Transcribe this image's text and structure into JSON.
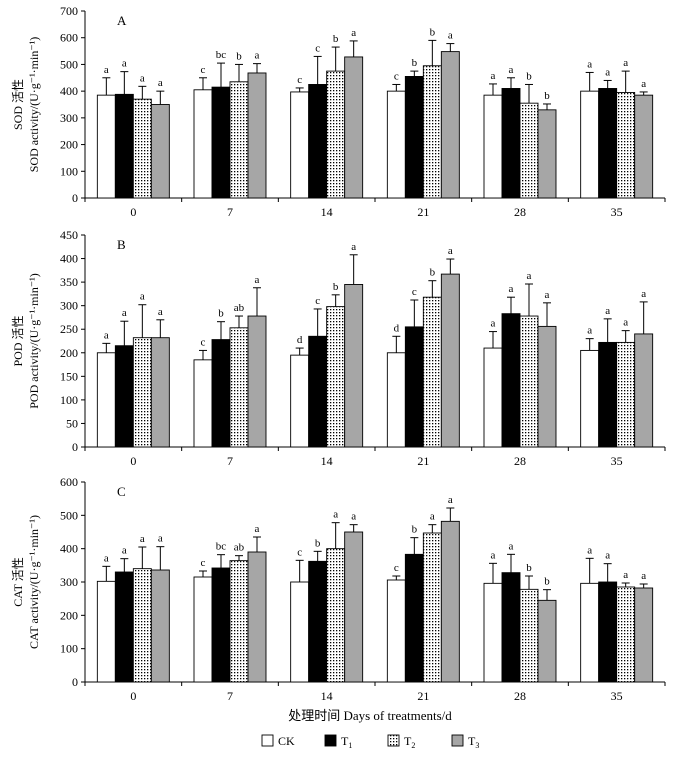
{
  "figure": {
    "xlabel": "处理时间 Days of treatments/d",
    "legend": [
      "CK",
      "T1",
      "T2",
      "T3"
    ],
    "legend_display": [
      {
        "base": "CK",
        "sub": ""
      },
      {
        "base": "T",
        "sub": "1"
      },
      {
        "base": "T",
        "sub": "2"
      },
      {
        "base": "T",
        "sub": "3"
      }
    ],
    "colors": {
      "CK": "#ffffff",
      "T1": "#000000",
      "T2": "#ffffff",
      "T3": "#a6a6a6",
      "axis": "#000000"
    }
  },
  "chart_data": [
    {
      "type": "bar",
      "panel": "A",
      "title": "A",
      "ylabel_cn": "SOD 活性",
      "ylabel_en": "SOD activity/(U·g⁻¹·min⁻¹)",
      "xlabel": "处理时间 Days of treatments/d",
      "categories": [
        "0",
        "7",
        "14",
        "21",
        "28",
        "35"
      ],
      "ylim": [
        0,
        700
      ],
      "yticks": [
        0,
        100,
        200,
        300,
        400,
        500,
        600,
        700
      ],
      "series": [
        {
          "name": "CK",
          "values": [
            385,
            405,
            397,
            400,
            385,
            400
          ],
          "errors": [
            65,
            45,
            15,
            25,
            42,
            70
          ],
          "letters": [
            "a",
            "c",
            "c",
            "c",
            "a",
            "a"
          ]
        },
        {
          "name": "T1",
          "values": [
            388,
            415,
            425,
            455,
            410,
            410
          ],
          "errors": [
            85,
            90,
            105,
            20,
            40,
            30
          ],
          "letters": [
            "a",
            "bc",
            "c",
            "b",
            "a",
            "a"
          ]
        },
        {
          "name": "T2",
          "values": [
            370,
            435,
            475,
            495,
            355,
            395
          ],
          "errors": [
            48,
            65,
            90,
            95,
            70,
            80
          ],
          "letters": [
            "a",
            "b",
            "b",
            "b",
            "b",
            "a"
          ]
        },
        {
          "name": "T3",
          "values": [
            350,
            468,
            528,
            548,
            330,
            385
          ],
          "errors": [
            50,
            35,
            60,
            30,
            22,
            12
          ],
          "letters": [
            "a",
            "a",
            "a",
            "a",
            "b",
            "a"
          ]
        }
      ]
    },
    {
      "type": "bar",
      "panel": "B",
      "title": "B",
      "ylabel_cn": "POD 活性",
      "ylabel_en": "POD activity/(U·g⁻¹·min⁻¹)",
      "xlabel": "处理时间 Days of treatments/d",
      "categories": [
        "0",
        "7",
        "14",
        "21",
        "28",
        "35"
      ],
      "ylim": [
        0,
        450
      ],
      "yticks": [
        0,
        50,
        100,
        150,
        200,
        250,
        300,
        350,
        400,
        450
      ],
      "series": [
        {
          "name": "CK",
          "values": [
            200,
            185,
            195,
            200,
            210,
            205
          ],
          "errors": [
            20,
            20,
            15,
            35,
            35,
            25
          ],
          "letters": [
            "a",
            "c",
            "d",
            "d",
            "a",
            "a"
          ]
        },
        {
          "name": "T1",
          "values": [
            215,
            228,
            235,
            255,
            283,
            222
          ],
          "errors": [
            52,
            38,
            58,
            57,
            35,
            50
          ],
          "letters": [
            "a",
            "b",
            "c",
            "c",
            "a",
            "a"
          ]
        },
        {
          "name": "T2",
          "values": [
            232,
            253,
            298,
            318,
            278,
            222
          ],
          "errors": [
            70,
            25,
            25,
            35,
            68,
            25
          ],
          "letters": [
            "a",
            "ab",
            "b",
            "b",
            "a",
            "a"
          ]
        },
        {
          "name": "T3",
          "values": [
            232,
            278,
            345,
            367,
            256,
            240
          ],
          "errors": [
            38,
            60,
            63,
            32,
            50,
            68
          ],
          "letters": [
            "a",
            "a",
            "a",
            "a",
            "a",
            "a"
          ]
        }
      ]
    },
    {
      "type": "bar",
      "panel": "C",
      "title": "C",
      "ylabel_cn": "CAT 活性",
      "ylabel_en": "CAT activity/(U·g⁻¹·min⁻¹)",
      "xlabel": "处理时间 Days of treatments/d",
      "categories": [
        "0",
        "7",
        "14",
        "21",
        "28",
        "35"
      ],
      "ylim": [
        0,
        600
      ],
      "yticks": [
        0,
        100,
        200,
        300,
        400,
        500,
        600
      ],
      "series": [
        {
          "name": "CK",
          "values": [
            302,
            315,
            300,
            306,
            296,
            296
          ],
          "errors": [
            45,
            18,
            65,
            12,
            60,
            75
          ],
          "letters": [
            "a",
            "c",
            "c",
            "c",
            "a",
            "a"
          ]
        },
        {
          "name": "T1",
          "values": [
            330,
            342,
            362,
            383,
            328,
            300
          ],
          "errors": [
            40,
            40,
            30,
            50,
            55,
            55
          ],
          "letters": [
            "a",
            "bc",
            "b",
            "b",
            "a",
            "a"
          ]
        },
        {
          "name": "T2",
          "values": [
            340,
            364,
            400,
            447,
            278,
            285
          ],
          "errors": [
            65,
            15,
            78,
            25,
            40,
            12
          ],
          "letters": [
            "a",
            "ab",
            "a",
            "a",
            "b",
            "a"
          ]
        },
        {
          "name": "T3",
          "values": [
            336,
            390,
            450,
            482,
            245,
            282
          ],
          "errors": [
            70,
            45,
            22,
            40,
            32,
            12
          ],
          "letters": [
            "a",
            "a",
            "a",
            "a",
            "b",
            "a"
          ]
        }
      ]
    }
  ]
}
